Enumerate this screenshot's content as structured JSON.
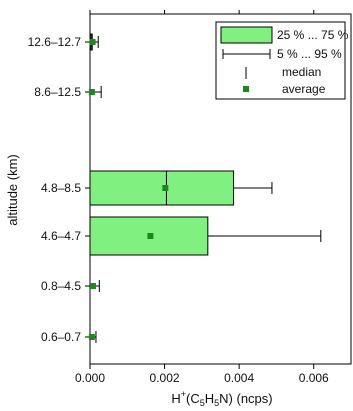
{
  "chart_data": {
    "type": "box",
    "orientation": "horizontal",
    "xlabel": "H⁺(C₅H₅N) (ncps)",
    "ylabel": "altitude (km)",
    "xlim": [
      0,
      0.007
    ],
    "x_ticks": [
      0,
      0.002,
      0.004,
      0.006
    ],
    "x_tick_labels": [
      "0.000",
      "0.002",
      "0.004",
      "0.006"
    ],
    "grid": false,
    "legend_position": "top-right",
    "legend": {
      "box": "25 % ... 75 %",
      "whisker": "5 % ... 95 %",
      "median": "median",
      "average": "average"
    },
    "colors": {
      "box_fill": "#80f080",
      "box_stroke": "#000000",
      "average_marker": "#1a8a1a",
      "whisker": "#000000"
    },
    "categories": [
      "12.6–12.7",
      "8.6–12.5",
      "4.8–8.5",
      "4.6–4.7",
      "0.8–4.5",
      "0.6–0.7"
    ],
    "boxes": [
      {
        "category": "12.6–12.7",
        "p5": 0.0,
        "q1": 0.0,
        "median": 3e-05,
        "q3": 6e-05,
        "p95": 0.00022,
        "mean": 7e-05
      },
      {
        "category": "8.6–12.5",
        "p5": 0.0,
        "q1": 0.0,
        "median": 2e-05,
        "q3": 4e-05,
        "p95": 0.0003,
        "mean": 5e-05
      },
      {
        "category": "4.8–8.5",
        "p5": 0.0,
        "q1": 0.0,
        "median": 0.00205,
        "q3": 0.00385,
        "p95": 0.00488,
        "mean": 0.00202
      },
      {
        "category": "4.6–4.7",
        "p5": 0.0,
        "q1": 0.0,
        "median": 0.0,
        "q3": 0.00316,
        "p95": 0.00619,
        "mean": 0.00162
      },
      {
        "category": "0.8–4.5",
        "p5": 0.0,
        "q1": 0.0,
        "median": 2e-05,
        "q3": 4e-05,
        "p95": 0.00025,
        "mean": 8e-05
      },
      {
        "category": "0.6–0.7",
        "p5": 0.0,
        "q1": 0.0,
        "median": 1e-05,
        "q3": 3e-05,
        "p95": 0.00016,
        "mean": 5e-05
      }
    ]
  }
}
